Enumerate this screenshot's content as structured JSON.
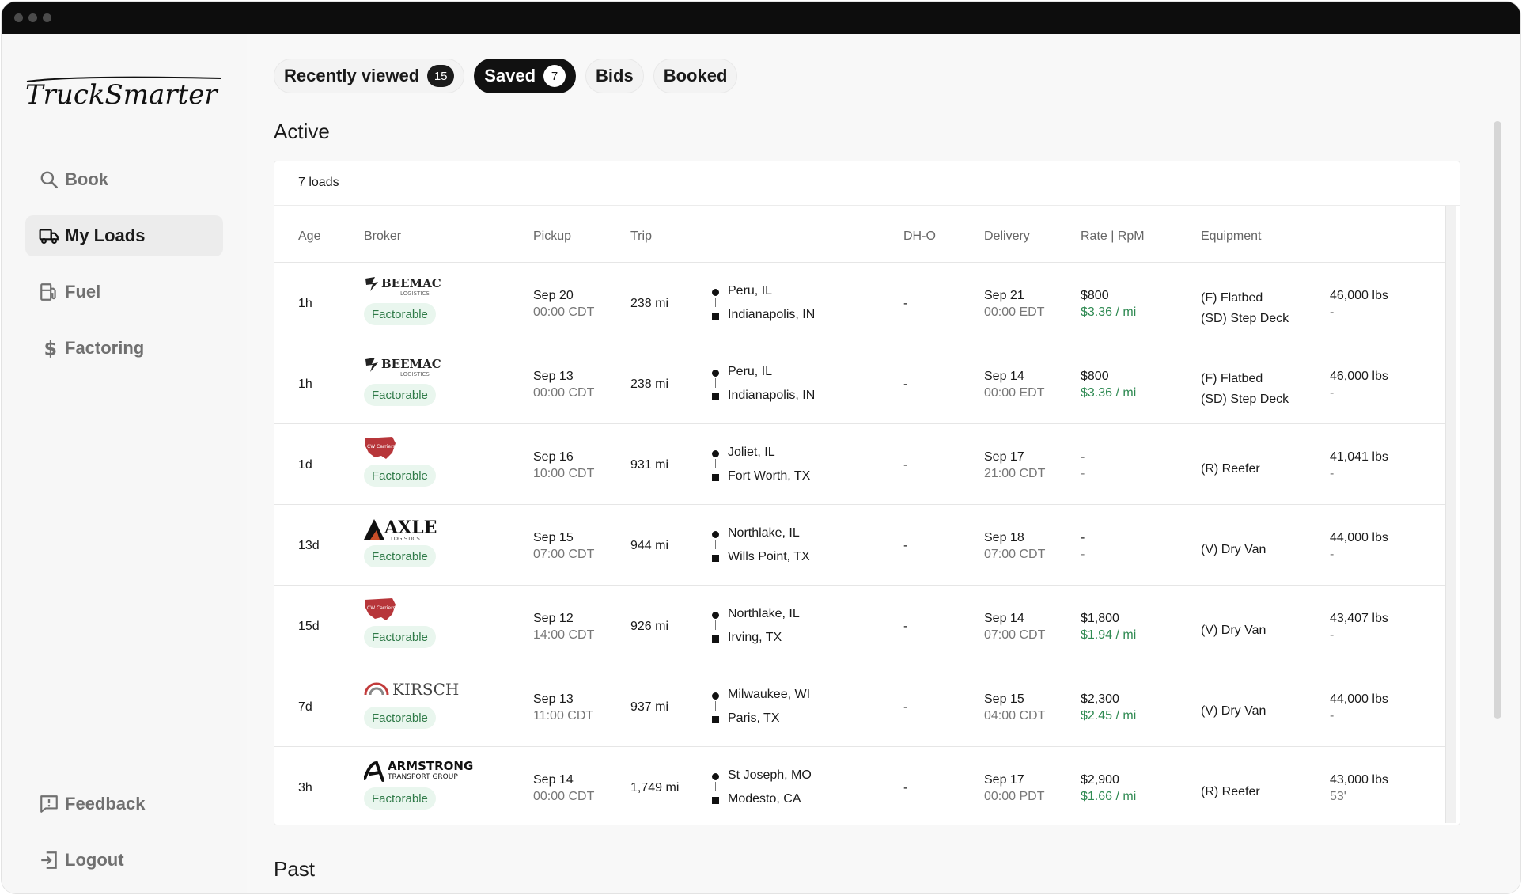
{
  "sidebar": {
    "brand": "TruckSmarter",
    "nav": [
      {
        "label": "Book",
        "icon": "search-icon"
      },
      {
        "label": "My Loads",
        "icon": "truck-icon"
      },
      {
        "label": "Fuel",
        "icon": "fuel-icon"
      },
      {
        "label": "Factoring",
        "icon": "dollar-icon"
      }
    ],
    "bottom": [
      {
        "label": "Feedback",
        "icon": "feedback-icon"
      },
      {
        "label": "Logout",
        "icon": "logout-icon"
      }
    ]
  },
  "tabs": [
    {
      "label": "Recently viewed",
      "badge": "15"
    },
    {
      "label": "Saved",
      "badge": "7",
      "active": true
    },
    {
      "label": "Bids"
    },
    {
      "label": "Booked"
    }
  ],
  "sections": {
    "active": "Active",
    "past": "Past"
  },
  "table": {
    "count_label": "7 loads",
    "columns": {
      "age": "Age",
      "broker": "Broker",
      "pickup": "Pickup",
      "trip": "Trip",
      "dho": "DH-O",
      "delivery": "Delivery",
      "rate": "Rate | RpM",
      "equipment": "Equipment"
    },
    "rows": [
      {
        "age": "1h",
        "broker_logo": "beemac-logo",
        "broker_text": "BEEMAC",
        "broker_sub": "LOGISTICS",
        "badge": "Factorable",
        "pickup_date": "Sep 20",
        "pickup_time": "00:00 CDT",
        "distance": "238 mi",
        "origin": "Peru, IL",
        "destination": "Indianapolis, IN",
        "dho": "-",
        "delivery_date": "Sep 21",
        "delivery_time": "00:00 EDT",
        "rate": "$800",
        "rpm": "$3.36 / mi",
        "equipment": [
          "(F) Flatbed",
          "(SD) Step Deck"
        ],
        "weight": "46,000 lbs",
        "length": "-"
      },
      {
        "age": "1h",
        "broker_logo": "beemac-logo",
        "broker_text": "BEEMAC",
        "broker_sub": "LOGISTICS",
        "badge": "Factorable",
        "pickup_date": "Sep 13",
        "pickup_time": "00:00 CDT",
        "distance": "238 mi",
        "origin": "Peru, IL",
        "destination": "Indianapolis, IN",
        "dho": "-",
        "delivery_date": "Sep 14",
        "delivery_time": "00:00 EDT",
        "rate": "$800",
        "rpm": "$3.36 / mi",
        "equipment": [
          "(F) Flatbed",
          "(SD) Step Deck"
        ],
        "weight": "46,000 lbs",
        "length": "-"
      },
      {
        "age": "1d",
        "broker_logo": "cw-carriers-logo",
        "broker_text": "CW Carriers",
        "broker_sub": "",
        "badge": "Factorable",
        "pickup_date": "Sep 16",
        "pickup_time": "10:00 CDT",
        "distance": "931 mi",
        "origin": "Joliet, IL",
        "destination": "Fort Worth, TX",
        "dho": "-",
        "delivery_date": "Sep 17",
        "delivery_time": "21:00 CDT",
        "rate": "-",
        "rpm": "-",
        "equipment": [
          "(R) Reefer"
        ],
        "weight": "41,041 lbs",
        "length": "-"
      },
      {
        "age": "13d",
        "broker_logo": "axle-logo",
        "broker_text": "AXLE",
        "broker_sub": "LOGISTICS",
        "badge": "Factorable",
        "pickup_date": "Sep 15",
        "pickup_time": "07:00 CDT",
        "distance": "944 mi",
        "origin": "Northlake, IL",
        "destination": "Wills Point, TX",
        "dho": "-",
        "delivery_date": "Sep 18",
        "delivery_time": "07:00 CDT",
        "rate": "-",
        "rpm": "-",
        "equipment": [
          "(V) Dry Van"
        ],
        "weight": "44,000 lbs",
        "length": "-"
      },
      {
        "age": "15d",
        "broker_logo": "cw-carriers-logo",
        "broker_text": "CW Carriers",
        "broker_sub": "",
        "badge": "Factorable",
        "pickup_date": "Sep 12",
        "pickup_time": "14:00 CDT",
        "distance": "926 mi",
        "origin": "Northlake, IL",
        "destination": "Irving, TX",
        "dho": "-",
        "delivery_date": "Sep 14",
        "delivery_time": "07:00 CDT",
        "rate": "$1,800",
        "rpm": "$1.94 / mi",
        "equipment": [
          "(V) Dry Van"
        ],
        "weight": "43,407 lbs",
        "length": "-"
      },
      {
        "age": "7d",
        "broker_logo": "kirsch-logo",
        "broker_text": "KIRSCH",
        "broker_sub": "",
        "badge": "Factorable",
        "pickup_date": "Sep 13",
        "pickup_time": "11:00 CDT",
        "distance": "937 mi",
        "origin": "Milwaukee, WI",
        "destination": "Paris, TX",
        "dho": "-",
        "delivery_date": "Sep 15",
        "delivery_time": "04:00 CDT",
        "rate": "$2,300",
        "rpm": "$2.45 / mi",
        "equipment": [
          "(V) Dry Van"
        ],
        "weight": "44,000 lbs",
        "length": "-"
      },
      {
        "age": "3h",
        "broker_logo": "armstrong-logo",
        "broker_text": "ARMSTRONG",
        "broker_sub": "TRANSPORT GROUP",
        "badge": "Factorable",
        "pickup_date": "Sep 14",
        "pickup_time": "00:00 CDT",
        "distance": "1,749 mi",
        "origin": "St Joseph, MO",
        "destination": "Modesto, CA",
        "dho": "-",
        "delivery_date": "Sep 17",
        "delivery_time": "00:00 PDT",
        "rate": "$2,900",
        "rpm": "$1.66 / mi",
        "equipment": [
          "(R) Reefer"
        ],
        "weight": "43,000 lbs",
        "length": "53'"
      }
    ]
  }
}
